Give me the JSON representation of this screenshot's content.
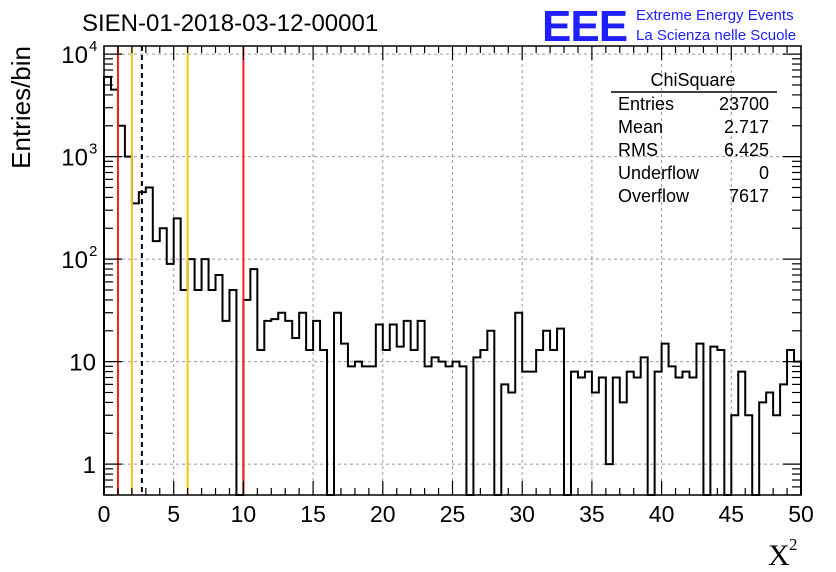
{
  "chart_data": {
    "type": "bar",
    "histogram": true,
    "title": "SIEN-01-2018-03-12-00001",
    "xlabel": "X",
    "xlabel_superscript": "2",
    "ylabel": "Entries/bin",
    "xlim": [
      0,
      50
    ],
    "ylim": [
      0.5,
      12000
    ],
    "yscale": "log",
    "grid": true,
    "bin_width": 0.5,
    "x_ticks": [
      "0",
      "5",
      "10",
      "15",
      "20",
      "25",
      "30",
      "35",
      "40",
      "45",
      "50"
    ],
    "y_ticks": [
      {
        "value": 1,
        "label": "1",
        "sup": ""
      },
      {
        "value": 10,
        "label": "10",
        "sup": ""
      },
      {
        "value": 100,
        "label": "10",
        "sup": "2"
      },
      {
        "value": 1000,
        "label": "10",
        "sup": "3"
      },
      {
        "value": 10000,
        "label": "10",
        "sup": "4"
      }
    ],
    "values": [
      6000,
      4500,
      2000,
      1000,
      350,
      450,
      500,
      150,
      200,
      90,
      250,
      50,
      100,
      50,
      100,
      50,
      70,
      25,
      50,
      0,
      40,
      80,
      13,
      25,
      26,
      30,
      25,
      17,
      30,
      13,
      25,
      13,
      0,
      30,
      15,
      9,
      10,
      9,
      9,
      23,
      13,
      23,
      14,
      25,
      13,
      25,
      9,
      11,
      10,
      9,
      10,
      9,
      0,
      11,
      13,
      20,
      0,
      6,
      5,
      30,
      8,
      8,
      13,
      20,
      13,
      21,
      0,
      8,
      7,
      8,
      5,
      7,
      1,
      7,
      4,
      8,
      7,
      11,
      0,
      8,
      15,
      9,
      7,
      8,
      7,
      15,
      0,
      14,
      13,
      0,
      3,
      8,
      3,
      0,
      4,
      5,
      3,
      6,
      13,
      10
    ],
    "vertical_lines": [
      {
        "x": 1.0,
        "color": "#e8261e",
        "style": "solid"
      },
      {
        "x": 2.0,
        "color": "#f0c419",
        "style": "solid"
      },
      {
        "x": 2.717,
        "color": "#000000",
        "style": "dashed"
      },
      {
        "x": 6.0,
        "color": "#f0c419",
        "style": "solid"
      },
      {
        "x": 10.0,
        "color": "#e8261e",
        "style": "solid"
      }
    ],
    "stats_box": {
      "title": "ChiSquare",
      "rows": [
        {
          "label": "Entries",
          "value": "23700"
        },
        {
          "label": "Mean",
          "value": "2.717"
        },
        {
          "label": "RMS",
          "value": "6.425"
        },
        {
          "label": "Underflow",
          "value": "0"
        },
        {
          "label": "Overflow",
          "value": "7617"
        }
      ]
    }
  },
  "logo": {
    "mark": "EEE",
    "line1": "Extreme Energy Events",
    "line2": "La Scienza nelle Scuole",
    "color": "#1f1fff"
  }
}
